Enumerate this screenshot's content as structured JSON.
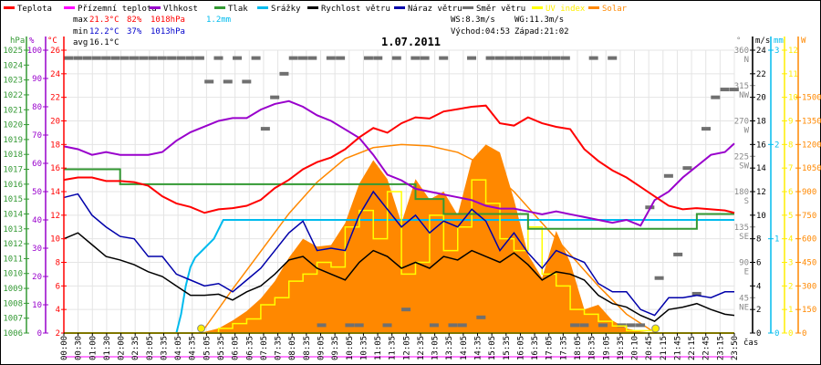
{
  "chart_data": {
    "type": "line",
    "title": "1.07.2011",
    "legend": [
      {
        "name": "Teplota",
        "color": "#ff0000"
      },
      {
        "name": "Přízemní teplota",
        "color": "#ff00ff"
      },
      {
        "name": "Vlhkost",
        "color": "#9900cc"
      },
      {
        "name": "Tlak",
        "color": "#339933"
      },
      {
        "name": "Srážky",
        "color": "#00bbee"
      },
      {
        "name": "Rychlost větru",
        "color": "#000000"
      },
      {
        "name": "Náraz větru",
        "color": "#0000aa"
      },
      {
        "name": "Směr větru",
        "color": "#707070"
      },
      {
        "name": "UV index",
        "color": "#ffff00"
      },
      {
        "name": "Solar",
        "color": "#ff8800"
      }
    ],
    "stats": {
      "max_label": "max",
      "min_label": "min",
      "avg_label": "avg",
      "max_temp": "21.3°C",
      "max_hum": "82%",
      "max_press": "1018hPa",
      "rain": "1.2mm",
      "min_temp": "12.2°C",
      "min_hum": "37%",
      "min_press": "1013hPa",
      "avg_temp": "16.1°C",
      "ws": "WS:8.3m/s",
      "wg": "WG:11.3m/s",
      "sunrise": "Východ:04:53",
      "sunset": "Západ:21:02"
    },
    "axes": {
      "pressure": {
        "unit": "hPa",
        "ticks": [
          1006,
          1007,
          1008,
          1009,
          1010,
          1011,
          1012,
          1013,
          1014,
          1015,
          1016,
          1017,
          1018,
          1019,
          1020,
          1021,
          1022,
          1023,
          1024,
          1025
        ],
        "range": [
          1006,
          1025
        ]
      },
      "humidity": {
        "unit": "%",
        "ticks": [
          0,
          10,
          20,
          30,
          40,
          50,
          60,
          70,
          80,
          90,
          100
        ],
        "range": [
          0,
          100
        ]
      },
      "temperature": {
        "unit": "°C",
        "ticks": [
          2,
          4,
          6,
          8,
          10,
          12,
          14,
          16,
          18,
          20,
          22,
          24,
          26
        ],
        "range": [
          2,
          26
        ]
      },
      "direction": {
        "unit": "°",
        "ticks": [
          {
            "v": 360,
            "d": "N"
          },
          {
            "v": 315,
            "d": "NW"
          },
          {
            "v": 270,
            "d": "W"
          },
          {
            "v": 225,
            "d": "SW"
          },
          {
            "v": 180,
            "d": "S"
          },
          {
            "v": 135,
            "d": "SE"
          },
          {
            "v": 90,
            "d": "E"
          },
          {
            "v": 45,
            "d": "NE"
          }
        ],
        "range": [
          0,
          360
        ]
      },
      "wind": {
        "unit": "m/s",
        "ticks": [
          0,
          2,
          4,
          6,
          8,
          10,
          12,
          14,
          16,
          18,
          20,
          22,
          24
        ],
        "range": [
          0,
          24
        ]
      },
      "rain": {
        "unit": "mm",
        "ticks": [
          0,
          1,
          2,
          3
        ],
        "range": [
          0,
          3
        ]
      },
      "uv": {
        "unit": "",
        "ticks": [
          0,
          1,
          2,
          3,
          4,
          5,
          6,
          7,
          8,
          9,
          10,
          11,
          12
        ],
        "range": [
          0,
          12
        ]
      },
      "solar": {
        "unit": "W",
        "ticks": [
          0,
          150,
          300,
          450,
          600,
          750,
          900,
          1050,
          1200,
          1350,
          1500
        ],
        "range": [
          0,
          1800
        ]
      },
      "x": {
        "label": "čas",
        "ticks": [
          "00:00",
          "00:30",
          "01:00",
          "01:30",
          "02:00",
          "02:35",
          "03:05",
          "03:35",
          "04:05",
          "04:35",
          "05:05",
          "05:35",
          "06:05",
          "06:35",
          "07:05",
          "07:35",
          "08:05",
          "08:35",
          "09:05",
          "09:35",
          "10:05",
          "10:35",
          "11:05",
          "11:35",
          "12:05",
          "12:35",
          "13:05",
          "13:35",
          "14:05",
          "14:35",
          "15:05",
          "15:35",
          "16:05",
          "16:35",
          "17:05",
          "17:35",
          "18:05",
          "18:35",
          "19:05",
          "19:35",
          "20:10",
          "20:45",
          "21:15",
          "21:45",
          "22:15",
          "22:45",
          "23:15",
          "23:50"
        ]
      }
    },
    "series": {
      "temperature": {
        "t": [
          0,
          30,
          60,
          90,
          120,
          150,
          180,
          210,
          240,
          270,
          300,
          330,
          360,
          390,
          420,
          450,
          480,
          510,
          540,
          570,
          600,
          630,
          660,
          690,
          720,
          750,
          780,
          810,
          840,
          870,
          900,
          930,
          960,
          990,
          1020,
          1050,
          1080,
          1110,
          1140,
          1170,
          1200,
          1230,
          1260,
          1290,
          1320,
          1350,
          1380,
          1410,
          1430
        ],
        "v": [
          15.0,
          15.2,
          15.2,
          14.9,
          14.9,
          14.8,
          14.5,
          13.6,
          13.0,
          12.7,
          12.2,
          12.5,
          12.6,
          12.8,
          13.3,
          14.3,
          15.0,
          15.9,
          16.5,
          16.9,
          17.6,
          18.6,
          19.4,
          19.0,
          19.8,
          20.3,
          20.2,
          20.8,
          21.0,
          21.2,
          21.3,
          19.8,
          19.6,
          20.3,
          19.8,
          19.5,
          19.3,
          17.6,
          16.6,
          15.8,
          15.2,
          14.4,
          13.6,
          12.8,
          12.5,
          12.6,
          12.5,
          12.4,
          12.2
        ]
      },
      "humidity": {
        "t": [
          0,
          30,
          60,
          90,
          120,
          150,
          180,
          210,
          240,
          270,
          300,
          330,
          360,
          390,
          420,
          450,
          480,
          510,
          540,
          570,
          600,
          630,
          660,
          690,
          720,
          750,
          780,
          810,
          840,
          870,
          900,
          930,
          960,
          990,
          1020,
          1050,
          1080,
          1110,
          1140,
          1170,
          1200,
          1230,
          1260,
          1290,
          1320,
          1350,
          1380,
          1410,
          1430
        ],
        "v": [
          66,
          65,
          63,
          64,
          63,
          63,
          63,
          64,
          68,
          71,
          73,
          75,
          76,
          76,
          79,
          81,
          82,
          80,
          77,
          75,
          72,
          69,
          63,
          56,
          54,
          51,
          50,
          49,
          48,
          47,
          45,
          44,
          44,
          43,
          42,
          43,
          42,
          41,
          40,
          39,
          40,
          38,
          47,
          50,
          55,
          59,
          63,
          64,
          67
        ]
      },
      "pressure": {
        "t": [
          0,
          30,
          60,
          90,
          120,
          150,
          180,
          210,
          240,
          270,
          300,
          330,
          360,
          390,
          420,
          450,
          480,
          510,
          540,
          570,
          600,
          630,
          660,
          690,
          720,
          750,
          780,
          810,
          840,
          870,
          900,
          930,
          960,
          990,
          1020,
          1050,
          1080,
          1110,
          1140,
          1170,
          1200,
          1230,
          1260,
          1290,
          1320,
          1350,
          1380,
          1410,
          1430
        ],
        "v": [
          1017,
          1017,
          1017,
          1017,
          1016,
          1016,
          1016,
          1016,
          1016,
          1016,
          1016,
          1016,
          1016,
          1016,
          1016,
          1016,
          1016,
          1016,
          1016,
          1016,
          1016,
          1016,
          1016,
          1016,
          1016,
          1015,
          1015,
          1014,
          1014,
          1014,
          1014,
          1014,
          1014,
          1013,
          1013,
          1013,
          1013,
          1013,
          1013,
          1013,
          1013,
          1013,
          1013,
          1013,
          1013,
          1014,
          1014,
          1014,
          1014
        ]
      },
      "rain": {
        "t": [
          0,
          240,
          250,
          260,
          270,
          280,
          300,
          320,
          330,
          340,
          1430
        ],
        "v": [
          0,
          0,
          0.2,
          0.5,
          0.7,
          0.8,
          0.9,
          1.0,
          1.1,
          1.2,
          1.2
        ]
      },
      "wind_speed": {
        "t": [
          0,
          30,
          60,
          90,
          120,
          150,
          180,
          210,
          240,
          270,
          300,
          330,
          360,
          390,
          420,
          450,
          480,
          510,
          540,
          570,
          600,
          630,
          660,
          690,
          720,
          750,
          780,
          810,
          840,
          870,
          900,
          930,
          960,
          990,
          1020,
          1050,
          1080,
          1110,
          1140,
          1170,
          1200,
          1230,
          1260,
          1290,
          1320,
          1350,
          1380,
          1410,
          1430
        ],
        "v": [
          8.0,
          8.5,
          7.5,
          6.5,
          6.2,
          5.8,
          5.2,
          4.8,
          4.0,
          3.2,
          3.2,
          3.3,
          2.8,
          3.5,
          4.0,
          5.0,
          6.2,
          6.5,
          5.5,
          5.0,
          4.5,
          6.0,
          7.0,
          6.5,
          5.5,
          6.0,
          5.5,
          6.5,
          6.2,
          7.0,
          6.5,
          6.0,
          6.8,
          5.8,
          4.5,
          5.2,
          5.0,
          4.5,
          3.2,
          2.5,
          2.2,
          1.5,
          1.0,
          2.0,
          2.2,
          2.5,
          2.0,
          1.6,
          1.5
        ]
      },
      "wind_gust": {
        "t": [
          0,
          30,
          60,
          90,
          120,
          150,
          180,
          210,
          240,
          270,
          300,
          330,
          360,
          390,
          420,
          450,
          480,
          510,
          540,
          570,
          600,
          630,
          660,
          690,
          720,
          750,
          780,
          810,
          840,
          870,
          900,
          930,
          960,
          990,
          1020,
          1050,
          1080,
          1110,
          1140,
          1170,
          1200,
          1230,
          1260,
          1290,
          1320,
          1350,
          1380,
          1410,
          1430
        ],
        "v": [
          11.5,
          11.8,
          10.0,
          9.0,
          8.2,
          8.0,
          6.5,
          6.5,
          5.0,
          4.5,
          4.0,
          4.2,
          3.5,
          4.5,
          5.5,
          7.0,
          8.5,
          9.5,
          7.0,
          7.2,
          7.0,
          10.0,
          12.0,
          10.5,
          9.0,
          10.0,
          8.5,
          9.5,
          9.0,
          10.5,
          9.5,
          7.0,
          8.5,
          6.8,
          5.5,
          7.0,
          6.5,
          6.0,
          4.2,
          3.5,
          3.5,
          2.0,
          1.5,
          3.0,
          3.0,
          3.2,
          3.0,
          3.5,
          3.5
        ]
      },
      "uv": {
        "t": [
          0,
          270,
          300,
          330,
          360,
          390,
          420,
          450,
          480,
          510,
          540,
          570,
          600,
          630,
          660,
          690,
          720,
          750,
          780,
          810,
          840,
          870,
          900,
          930,
          960,
          990,
          1020,
          1050,
          1080,
          1110,
          1140,
          1170,
          1200,
          1260,
          1430
        ],
        "v": [
          0,
          0,
          0,
          0.2,
          0.4,
          0.6,
          1.2,
          1.5,
          2.2,
          2.5,
          3.0,
          2.8,
          4.5,
          5.2,
          4.0,
          6.0,
          2.5,
          3.0,
          5.0,
          3.5,
          4.5,
          6.5,
          5.5,
          4.0,
          3.5,
          4.5,
          2.5,
          2.0,
          1.0,
          0.8,
          0.5,
          0.3,
          0.1,
          0,
          0
        ]
      },
      "solar": {
        "t": [
          0,
          290,
          330,
          360,
          390,
          420,
          450,
          480,
          510,
          540,
          570,
          600,
          630,
          660,
          690,
          720,
          750,
          780,
          810,
          840,
          870,
          900,
          930,
          960,
          990,
          1020,
          1050,
          1080,
          1110,
          1140,
          1170,
          1200,
          1230,
          1262,
          1430
        ],
        "v": [
          0,
          0,
          30,
          80,
          140,
          220,
          330,
          480,
          600,
          550,
          560,
          700,
          950,
          1100,
          980,
          700,
          980,
          850,
          900,
          750,
          1100,
          1200,
          1150,
          850,
          500,
          350,
          650,
          450,
          150,
          180,
          80,
          30,
          10,
          0,
          0
        ]
      },
      "solar_max": {
        "t": [
          293,
          360,
          420,
          480,
          540,
          600,
          660,
          720,
          780,
          840,
          900,
          960,
          1020,
          1080,
          1140,
          1200,
          1262
        ],
        "v": [
          0,
          280,
          520,
          760,
          960,
          1110,
          1180,
          1200,
          1190,
          1150,
          1060,
          900,
          700,
          500,
          300,
          120,
          0
        ]
      },
      "wind_dir": {
        "t": [
          0,
          20,
          40,
          60,
          80,
          100,
          120,
          140,
          160,
          180,
          200,
          220,
          240,
          260,
          280,
          300,
          320,
          340,
          360,
          380,
          400,
          420,
          440,
          460,
          480,
          500,
          520,
          540,
          560,
          580,
          600,
          620,
          640,
          660,
          680,
          700,
          720,
          740,
          760,
          780,
          800,
          820,
          840,
          860,
          880,
          900,
          920,
          940,
          960,
          980,
          1000,
          1020,
          1040,
          1060,
          1080,
          1100,
          1120,
          1140,
          1160,
          1180,
          1200,
          1220,
          1240,
          1260,
          1280,
          1300,
          1320,
          1340,
          1360,
          1380,
          1400,
          1420
        ],
        "v": [
          350,
          350,
          350,
          350,
          350,
          350,
          350,
          350,
          350,
          350,
          350,
          350,
          350,
          350,
          350,
          320,
          350,
          320,
          350,
          320,
          350,
          260,
          300,
          330,
          350,
          350,
          350,
          10,
          350,
          350,
          10,
          10,
          350,
          350,
          10,
          350,
          30,
          350,
          350,
          10,
          350,
          10,
          10,
          350,
          20,
          350,
          350,
          350,
          350,
          350,
          350,
          350,
          350,
          350,
          10,
          10,
          350,
          10,
          350,
          10,
          10,
          10,
          160,
          70,
          200,
          100,
          210,
          50,
          260,
          300,
          310,
          310
        ]
      }
    },
    "markers": {
      "sunrise_label": "04:53",
      "sunset_label": "21:02"
    }
  }
}
